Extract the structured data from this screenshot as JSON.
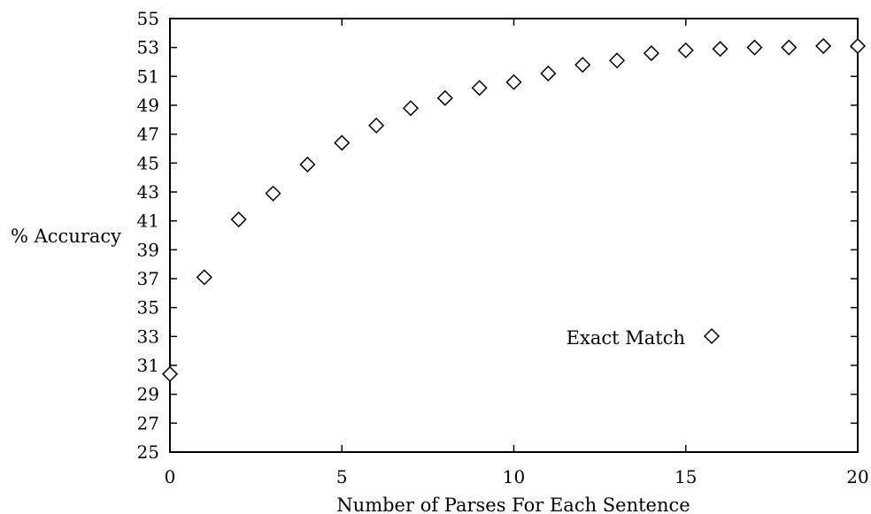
{
  "chart_data": {
    "type": "scatter",
    "xlabel": "Number of Parses For Each Sentence",
    "ylabel": "% Accuracy",
    "xlim": [
      0,
      20
    ],
    "ylim": [
      25,
      55
    ],
    "xticks": [
      0,
      5,
      10,
      15,
      20
    ],
    "yticks": [
      25,
      27,
      29,
      31,
      33,
      35,
      37,
      39,
      41,
      43,
      45,
      47,
      49,
      51,
      53,
      55
    ],
    "grid": false,
    "legend_position": "lower-right",
    "series": [
      {
        "name": "Exact Match",
        "marker": "diamond",
        "x": [
          0,
          1,
          2,
          3,
          4,
          5,
          6,
          7,
          8,
          9,
          10,
          11,
          12,
          13,
          14,
          15,
          16,
          17,
          18,
          19,
          20
        ],
        "y": [
          30.4,
          37.1,
          41.1,
          42.9,
          44.9,
          46.4,
          47.6,
          48.8,
          49.5,
          50.2,
          50.6,
          51.2,
          51.8,
          52.1,
          52.6,
          52.8,
          52.9,
          53.0,
          53.0,
          53.1,
          53.1
        ]
      }
    ]
  }
}
